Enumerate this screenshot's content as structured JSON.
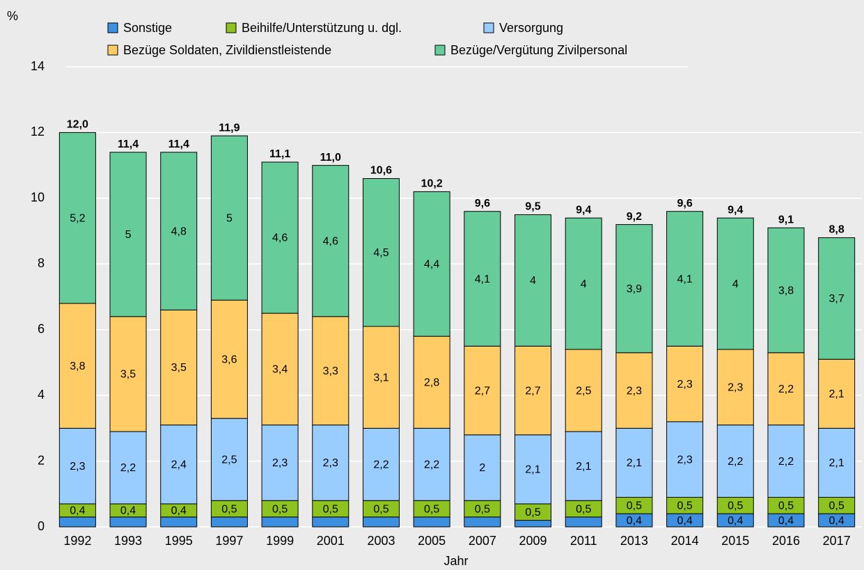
{
  "chart_data": {
    "type": "stacked_bar",
    "y_label": "%",
    "x_label": "Jahr",
    "categories": [
      "1992",
      "1993",
      "1995",
      "1997",
      "1999",
      "2001",
      "2003",
      "2005",
      "2007",
      "2009",
      "2011",
      "2013",
      "2014",
      "2015",
      "2016",
      "2017"
    ],
    "series": [
      {
        "name": "Sonstige",
        "color": "#3d8fe0",
        "values": [
          0.3,
          0.3,
          0.3,
          0.3,
          0.3,
          0.3,
          0.3,
          0.3,
          0.3,
          0.2,
          0.3,
          0.4,
          0.4,
          0.4,
          0.4,
          0.4
        ],
        "value_labels": [
          null,
          null,
          null,
          null,
          null,
          null,
          null,
          null,
          null,
          null,
          null,
          "0,4",
          "0,4",
          "0,4",
          "0,4",
          "0,4"
        ]
      },
      {
        "name": "Beihilfe/Unterstützung u. dgl.",
        "color": "#8dc21f",
        "values": [
          0.4,
          0.4,
          0.4,
          0.5,
          0.5,
          0.5,
          0.5,
          0.5,
          0.5,
          0.5,
          0.5,
          0.5,
          0.5,
          0.5,
          0.5,
          0.5
        ],
        "value_labels": [
          "0,4",
          "0,4",
          "0,4",
          "0,5",
          "0,5",
          "0,5",
          "0,5",
          "0,5",
          "0,5",
          "0,5",
          "0,5",
          "0,5",
          "0,5",
          "0,5",
          "0,5",
          "0,5"
        ]
      },
      {
        "name": "Versorgung",
        "color": "#99ccff",
        "values": [
          2.3,
          2.2,
          2.4,
          2.5,
          2.3,
          2.3,
          2.2,
          2.2,
          2,
          2.1,
          2.1,
          2.1,
          2.3,
          2.2,
          2.2,
          2.1
        ],
        "value_labels": [
          "2,3",
          "2,2",
          "2,4",
          "2,5",
          "2,3",
          "2,3",
          "2,2",
          "2,2",
          "2",
          "2,1",
          "2,1",
          "2,1",
          "2,3",
          "2,2",
          "2,2",
          "2,1"
        ]
      },
      {
        "name": "Bezüge Soldaten, Zivildienstleistende",
        "color": "#ffcc66",
        "values": [
          3.8,
          3.5,
          3.5,
          3.6,
          3.4,
          3.3,
          3.1,
          2.8,
          2.7,
          2.7,
          2.5,
          2.3,
          2.3,
          2.3,
          2.2,
          2.1
        ],
        "value_labels": [
          "3,8",
          "3,5",
          "3,5",
          "3,6",
          "3,4",
          "3,3",
          "3,1",
          "2,8",
          "2,7",
          "2,7",
          "2,5",
          "2,3",
          "2,3",
          "2,3",
          "2,2",
          "2,1"
        ]
      },
      {
        "name": "Bezüge/Vergütung Zivilpersonal",
        "color": "#66cc99",
        "values": [
          5.2,
          5,
          4.8,
          5,
          4.6,
          4.6,
          4.5,
          4.4,
          4.1,
          4,
          4,
          3.9,
          4.1,
          4,
          3.8,
          3.7
        ],
        "value_labels": [
          "5,2",
          "5",
          "4,8",
          "5",
          "4,6",
          "4,6",
          "4,5",
          "4,4",
          "4,1",
          "4",
          "4",
          "3,9",
          "4,1",
          "4",
          "3,8",
          "3,7"
        ]
      }
    ],
    "totals": [
      12.0,
      11.4,
      11.4,
      11.9,
      11.1,
      11.0,
      10.6,
      10.2,
      9.6,
      9.5,
      9.4,
      9.2,
      9.6,
      9.4,
      9.1,
      8.8
    ],
    "total_labels": [
      "12,0",
      "11,4",
      "11,4",
      "11,9",
      "11,1",
      "11,0",
      "10,6",
      "10,2",
      "9,6",
      "9,5",
      "9,4",
      "9,2",
      "9,6",
      "9,4",
      "9,1",
      "8,8"
    ],
    "ylim": [
      0,
      14
    ],
    "yticks": [
      0,
      2,
      4,
      6,
      8,
      10,
      12,
      14
    ],
    "grid": true
  }
}
